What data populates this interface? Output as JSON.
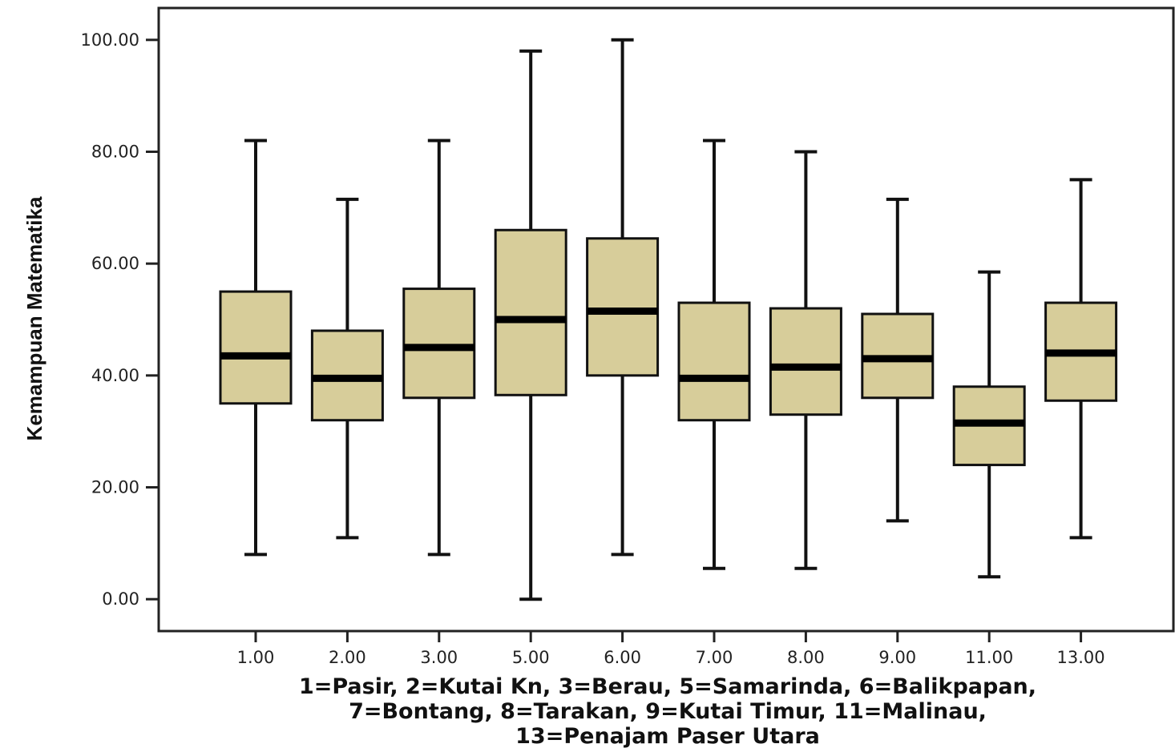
{
  "chart_data": {
    "type": "boxplot",
    "ylabel": "Kemampuan Matematika",
    "xlabel_lines": [
      "1=Pasir, 2=Kutai Kn, 3=Berau, 5=Samarinda, 6=Balikpapan,",
      "7=Bontang, 8=Tarakan, 9=Kutai Timur, 11=Malinau,",
      "13=Penajam Paser Utara"
    ],
    "ylim": [
      -5.7,
      105.7
    ],
    "yticks": [
      "0.00",
      "20.00",
      "40.00",
      "60.00",
      "80.00",
      "100.00"
    ],
    "box_color": "#d7cd9a",
    "categories": [
      "1.00",
      "2.00",
      "3.00",
      "5.00",
      "6.00",
      "7.00",
      "8.00",
      "9.00",
      "11.00",
      "13.00"
    ],
    "boxes": [
      {
        "category": "1.00",
        "min": 8,
        "q1": 35,
        "median": 43.5,
        "q3": 55,
        "max": 82
      },
      {
        "category": "2.00",
        "min": 11,
        "q1": 32,
        "median": 39.5,
        "q3": 48,
        "max": 71.5
      },
      {
        "category": "3.00",
        "min": 8,
        "q1": 36,
        "median": 45,
        "q3": 55.5,
        "max": 82
      },
      {
        "category": "5.00",
        "min": 0,
        "q1": 36.5,
        "median": 50,
        "q3": 66,
        "max": 98
      },
      {
        "category": "6.00",
        "min": 8,
        "q1": 40,
        "median": 51.5,
        "q3": 64.5,
        "max": 100
      },
      {
        "category": "7.00",
        "min": 5.5,
        "q1": 32,
        "median": 39.5,
        "q3": 53,
        "max": 82
      },
      {
        "category": "8.00",
        "min": 5.5,
        "q1": 33,
        "median": 41.5,
        "q3": 52,
        "max": 80
      },
      {
        "category": "9.00",
        "min": 14,
        "q1": 36,
        "median": 43,
        "q3": 51,
        "max": 71.5
      },
      {
        "category": "11.00",
        "min": 4,
        "q1": 24,
        "median": 31.5,
        "q3": 38,
        "max": 58.5
      },
      {
        "category": "13.00",
        "min": 11,
        "q1": 35.5,
        "median": 44,
        "q3": 53,
        "max": 75
      }
    ],
    "grid": false,
    "legend": "none"
  }
}
